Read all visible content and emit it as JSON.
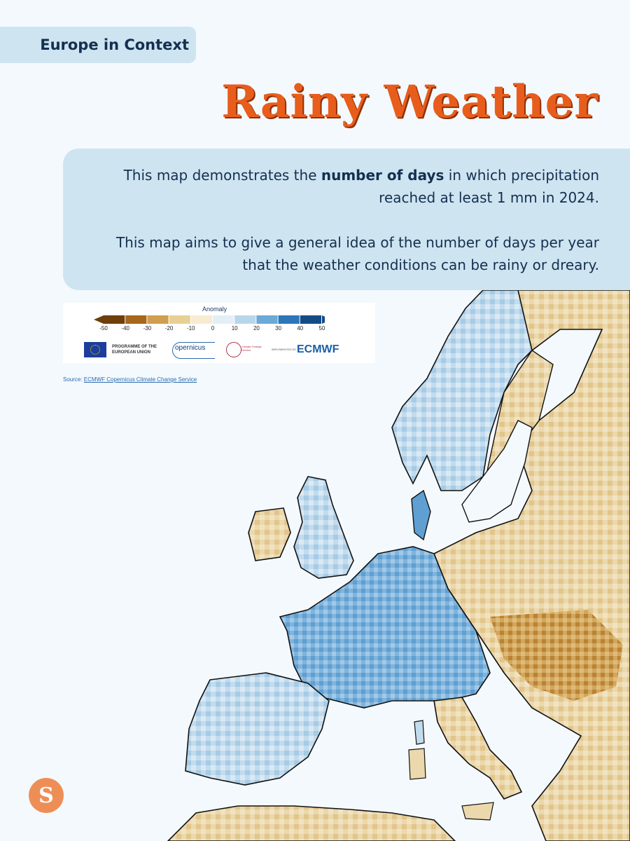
{
  "header": {
    "tag": "Europe in Context",
    "title": "Rainy Weather"
  },
  "description": {
    "p1_before": "This map demonstrates the ",
    "p1_bold": "number of days",
    "p1_after": " in which precipitation reached at least 1 mm in 2024.",
    "p2": "This map aims to give a general idea of the number of days per year that the weather conditions can be rainy or dreary."
  },
  "legend": {
    "title": "Anomaly",
    "ticks": [
      "-50",
      "-40",
      "-30",
      "-20",
      "-10",
      "0",
      "10",
      "20",
      "30",
      "40",
      "50"
    ],
    "colors": [
      "#6e3f0a",
      "#a8671a",
      "#cf9e4f",
      "#e8cf94",
      "#f6ecd2",
      "#e4eef6",
      "#b8d6ea",
      "#6aaad6",
      "#2f76b8",
      "#144b86"
    ],
    "logos": {
      "eu": "PROGRAMME OF THE EUROPEAN UNION",
      "copernicus": "opernicus",
      "c3s": "Climate Change Service",
      "implemented": "IMPLEMENTED BY",
      "ecmwf": "ECMWF"
    }
  },
  "source": {
    "prefix": "Source: ",
    "link_text": "ECMWF Copernicus Climate Change Service"
  },
  "logo": {
    "letter": "S"
  }
}
